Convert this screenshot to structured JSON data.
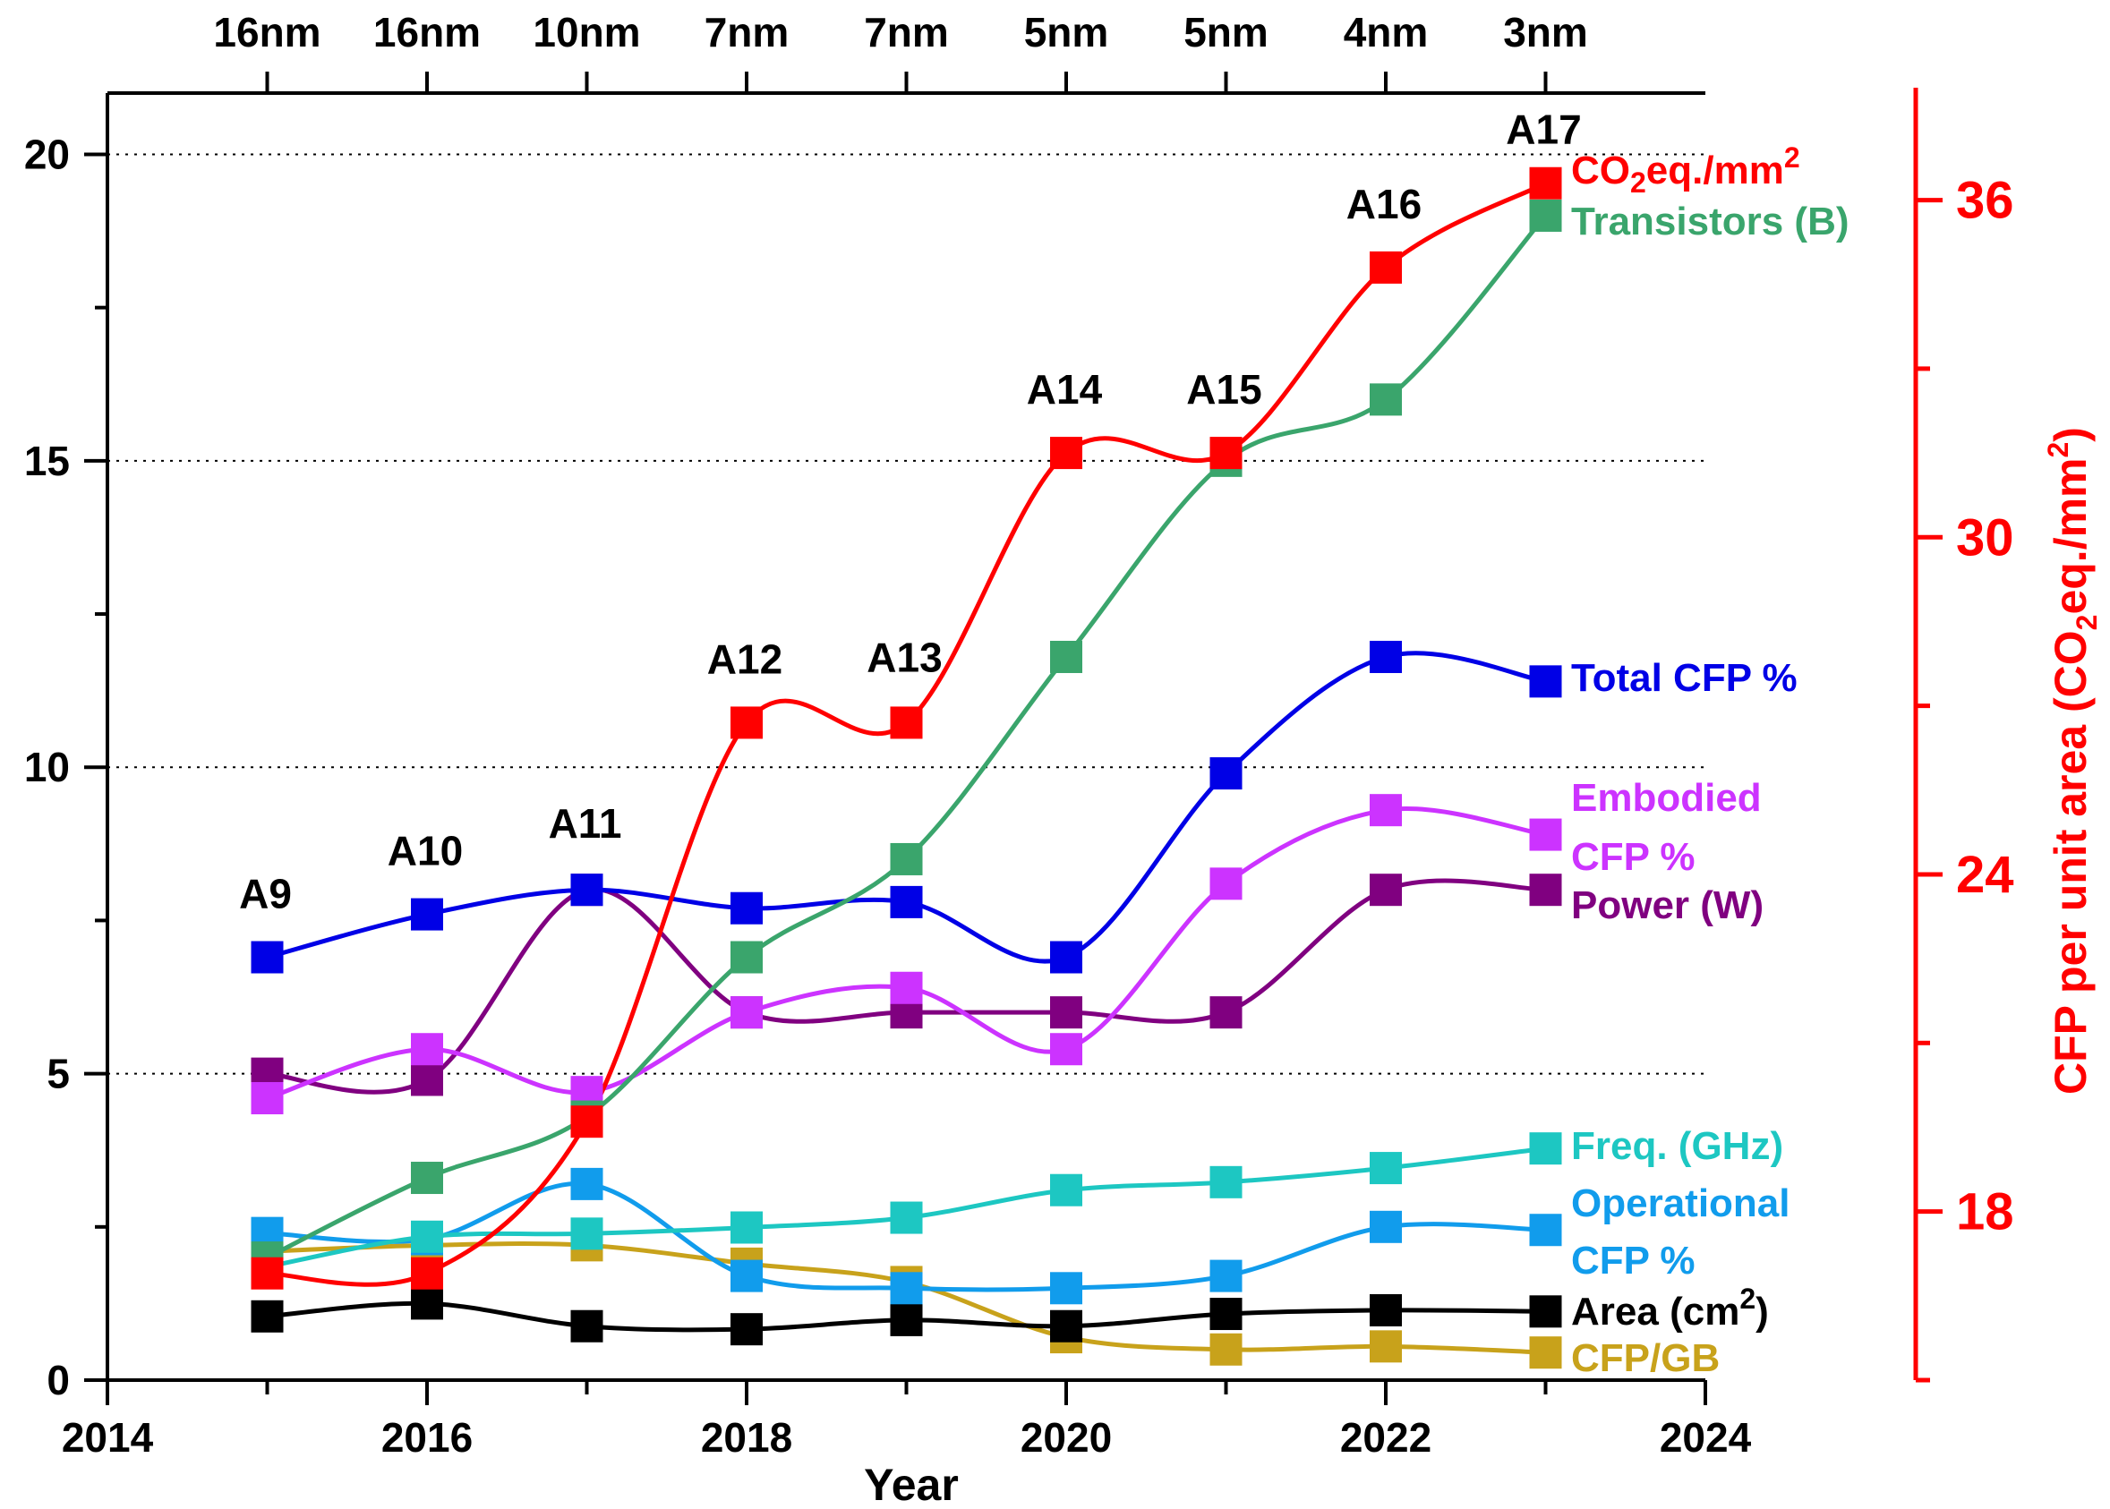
{
  "chart_data": {
    "type": "line",
    "xlabel": "Year",
    "xlim": [
      2014,
      2024
    ],
    "x_ticks": [
      "2014",
      "2016",
      "2018",
      "2020",
      "2022",
      "2024"
    ],
    "ylim": [
      0,
      21
    ],
    "y_ticks": [
      "0",
      "5",
      "10",
      "15",
      "20"
    ],
    "y2label_parts": {
      "pre": "CFP per unit area (CO",
      "sub": "2",
      "mid": "eq./mm",
      "sup": "2",
      "post": ")"
    },
    "y2lim": [
      15,
      38
    ],
    "y2_ticks": [
      "18",
      "24",
      "30",
      "36"
    ],
    "grid_y": [
      5,
      10,
      15,
      20
    ],
    "x": [
      2015,
      2016,
      2017,
      2018,
      2019,
      2020,
      2021,
      2022,
      2023
    ],
    "nodes": [
      "16nm",
      "16nm",
      "10nm",
      "7nm",
      "7nm",
      "5nm",
      "5nm",
      "4nm",
      "3nm"
    ],
    "chips": [
      "A9",
      "A10",
      "A11",
      "A12",
      "A13",
      "A14",
      "A15",
      "A16",
      "A17"
    ],
    "series": [
      {
        "key": "co2",
        "axis": "right",
        "color": "#ff0000",
        "label_parts": {
          "pre": "CO",
          "sub": "2",
          "mid": "eq./mm",
          "sup": "2"
        },
        "values": [
          16.9,
          16.9,
          19.6,
          26.7,
          26.7,
          31.5,
          31.5,
          34.8,
          36.3
        ]
      },
      {
        "key": "transistors",
        "axis": "left",
        "color": "#3aa56c",
        "label": "Transistors (B)",
        "values": [
          2.0,
          3.3,
          4.3,
          6.9,
          8.5,
          11.8,
          15.0,
          16.0,
          19.0
        ]
      },
      {
        "key": "total_cfp",
        "axis": "left",
        "color": "#0000e6",
        "label": "Total CFP %",
        "values": [
          6.9,
          7.6,
          8.0,
          7.7,
          7.8,
          6.9,
          9.9,
          11.8,
          11.4
        ]
      },
      {
        "key": "embodied_cfp",
        "axis": "left",
        "color": "#cc33ff",
        "label_lines": [
          "Embodied",
          "CFP %"
        ],
        "values": [
          4.6,
          5.4,
          4.7,
          6.0,
          6.4,
          5.4,
          8.1,
          9.3,
          8.9
        ]
      },
      {
        "key": "power",
        "axis": "left",
        "color": "#800080",
        "label": "Power (W)",
        "values": [
          5.0,
          4.9,
          8.0,
          6.0,
          6.0,
          6.0,
          6.0,
          8.0,
          8.0
        ]
      },
      {
        "key": "freq",
        "axis": "left",
        "color": "#1dc7c2",
        "label": "Freq. (GHz)",
        "values": [
          1.85,
          2.34,
          2.39,
          2.49,
          2.65,
          3.1,
          3.23,
          3.46,
          3.78
        ]
      },
      {
        "key": "operational_cfp",
        "axis": "left",
        "color": "#119cec",
        "label_lines": [
          "Operational",
          "CFP %"
        ],
        "values": [
          2.4,
          2.3,
          3.2,
          1.7,
          1.5,
          1.5,
          1.7,
          2.5,
          2.45
        ]
      },
      {
        "key": "area",
        "axis": "left",
        "color": "#000000",
        "label_parts": {
          "pre": "Area (cm",
          "sup": "2",
          "post": ")"
        },
        "values": [
          1.04,
          1.25,
          0.88,
          0.83,
          0.98,
          0.88,
          1.08,
          1.14,
          1.12
        ]
      },
      {
        "key": "cfp_gb",
        "axis": "left",
        "color": "#c8a21b",
        "label": "CFP/GB",
        "values": [
          2.1,
          2.2,
          2.2,
          1.9,
          1.6,
          0.7,
          0.5,
          0.55,
          0.45
        ]
      }
    ]
  }
}
